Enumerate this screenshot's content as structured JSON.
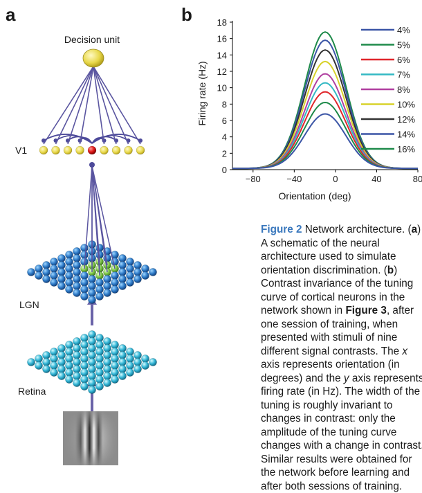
{
  "panel_a": {
    "label": "a",
    "decision_unit": "Decision unit",
    "v1": "V1",
    "lgn": "LGN",
    "retina": "Retina"
  },
  "panel_b": {
    "label": "b"
  },
  "chart_data": {
    "type": "line",
    "xlabel": "Orientation (deg)",
    "ylabel": "Firing rate (Hz)",
    "xlim": [
      -100,
      80
    ],
    "ylim": [
      0,
      18
    ],
    "xticks": [
      -80,
      -40,
      0,
      40,
      80
    ],
    "xtick_labels": [
      "−80",
      "−40",
      "0",
      "40",
      "80"
    ],
    "yticks": [
      0,
      2,
      4,
      6,
      8,
      10,
      12,
      14,
      16,
      18
    ],
    "center": -10,
    "legend_placement": "right",
    "series": [
      {
        "name": "4%",
        "peak": 6.8,
        "color": "#3b55a6"
      },
      {
        "name": "5%",
        "peak": 8.2,
        "color": "#1e8a4a"
      },
      {
        "name": "6%",
        "peak": 9.5,
        "color": "#e0262b"
      },
      {
        "name": "7%",
        "peak": 10.6,
        "color": "#33b9c4"
      },
      {
        "name": "8%",
        "peak": 11.7,
        "color": "#b03fa0"
      },
      {
        "name": "10%",
        "peak": 13.2,
        "color": "#d8d22b"
      },
      {
        "name": "12%",
        "peak": 14.6,
        "color": "#333333"
      },
      {
        "name": "14%",
        "peak": 15.8,
        "color": "#3b55a6"
      },
      {
        "name": "16%",
        "peak": 16.8,
        "color": "#1e8a4a"
      }
    ]
  },
  "caption": {
    "fig_label": "Figure 2",
    "t1": "  Network architecture. (",
    "a": "a",
    "t2": ") A schematic of the neural architecture used to simulate orientation discrimination. (",
    "b": "b",
    "t3": ") Contrast invariance of the tuning curve of cortical neurons in the network shown in ",
    "fig3": "Figure 3",
    "t4": ", after one session of training, when presented with stimuli of nine different signal contrasts. The ",
    "x": "x",
    "t5": " axis represents orientation (in degrees) and the ",
    "y": "y",
    "t6": " axis represents firing rate (in Hz). The width of the tuning is roughly invariant to changes in contrast: only the amplitude of the tuning curve changes with a change in contrast. Similar results were obtained for the network before learning and after both sessions of training."
  }
}
